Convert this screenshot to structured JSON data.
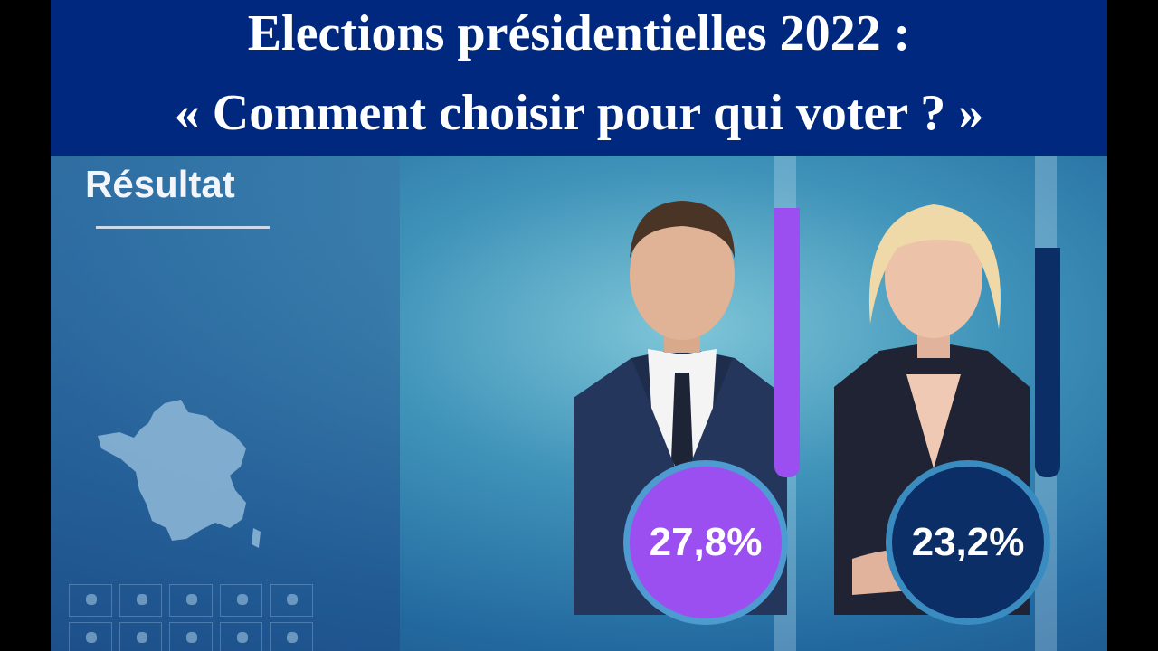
{
  "title": {
    "line1": "Elections présidentielles 2022 :",
    "line2": "« Comment choisir pour qui voter ? »"
  },
  "result_label": "Résultat",
  "candidates": [
    {
      "result": "27,8%",
      "value": 27.8,
      "color": "#9c4ff0"
    },
    {
      "result": "23,2%",
      "value": 23.2,
      "color": "#0c2e66"
    }
  ],
  "colors": {
    "title_band": "#00287f",
    "title_text": "#ffffff",
    "macron_purple": "#9c4ff0",
    "lepen_navy": "#0c2e66"
  }
}
